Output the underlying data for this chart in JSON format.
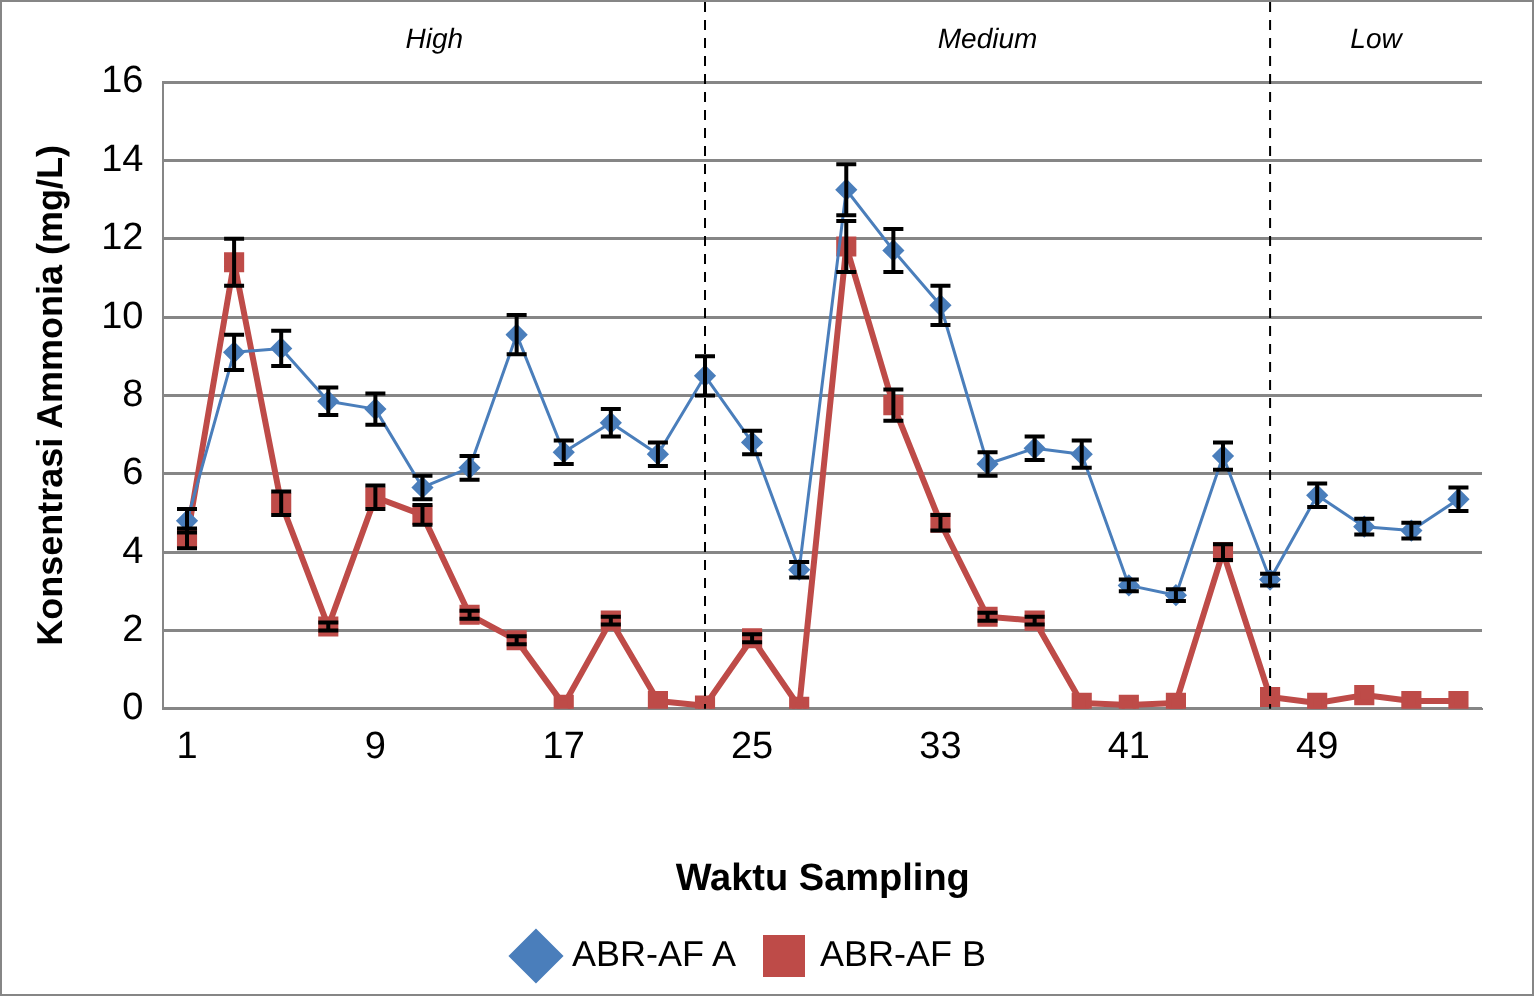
{
  "chart_data": {
    "type": "line",
    "xlabel": "Waktu Sampling",
    "ylabel": "Konsentrasi Ammonia (mg/L)",
    "x": [
      1,
      3,
      5,
      7,
      9,
      11,
      13,
      15,
      17,
      19,
      21,
      23,
      25,
      27,
      29,
      31,
      33,
      35,
      37,
      39,
      41,
      43,
      45,
      47,
      49,
      51,
      53,
      55
    ],
    "xlim": [
      0,
      56
    ],
    "xticks": [
      1,
      9,
      17,
      25,
      33,
      41,
      49
    ],
    "ylim": [
      0,
      16
    ],
    "yticks": [
      0,
      2,
      4,
      6,
      8,
      10,
      12,
      14,
      16
    ],
    "grid": "y",
    "legend": "bottom",
    "series": [
      {
        "name": "ABR-AF A",
        "color": "#4a7ebb",
        "marker": "diamond",
        "values": [
          4.8,
          9.1,
          9.2,
          7.85,
          7.65,
          5.65,
          6.15,
          9.55,
          6.55,
          7.3,
          6.5,
          8.5,
          6.8,
          3.55,
          13.25,
          11.7,
          10.3,
          6.25,
          6.65,
          6.5,
          3.15,
          2.9,
          6.45,
          3.3,
          5.45,
          4.65,
          4.55,
          5.35
        ],
        "errors": [
          0.3,
          0.45,
          0.45,
          0.35,
          0.4,
          0.3,
          0.3,
          0.5,
          0.3,
          0.35,
          0.3,
          0.5,
          0.3,
          0.2,
          0.65,
          0.55,
          0.5,
          0.3,
          0.3,
          0.35,
          0.15,
          0.15,
          0.35,
          0.15,
          0.3,
          0.2,
          0.2,
          0.3
        ]
      },
      {
        "name": "ABR-AF B",
        "color": "#be4b48",
        "marker": "square",
        "values": [
          4.35,
          11.4,
          5.25,
          2.1,
          5.4,
          4.95,
          2.4,
          1.75,
          0.1,
          2.25,
          0.2,
          0.08,
          1.8,
          0.05,
          11.8,
          7.75,
          4.75,
          2.35,
          2.25,
          0.15,
          0.1,
          0.15,
          4.0,
          0.3,
          0.15,
          0.35,
          0.2,
          0.2
        ],
        "errors": [
          0.25,
          0.6,
          0.3,
          0.1,
          0.3,
          0.25,
          0.1,
          0.1,
          null,
          0.1,
          null,
          null,
          0.1,
          null,
          0.65,
          0.4,
          0.2,
          0.1,
          0.1,
          null,
          null,
          null,
          0.2,
          null,
          null,
          null,
          null,
          null
        ]
      }
    ],
    "ref_lines": [
      {
        "axis": "x",
        "value": 23,
        "color": "#000000",
        "line_style": "dashed"
      },
      {
        "axis": "x",
        "value": 47,
        "color": "#000000",
        "line_style": "dashed"
      }
    ],
    "annotations": [
      "High",
      "Medium",
      "Low"
    ]
  }
}
